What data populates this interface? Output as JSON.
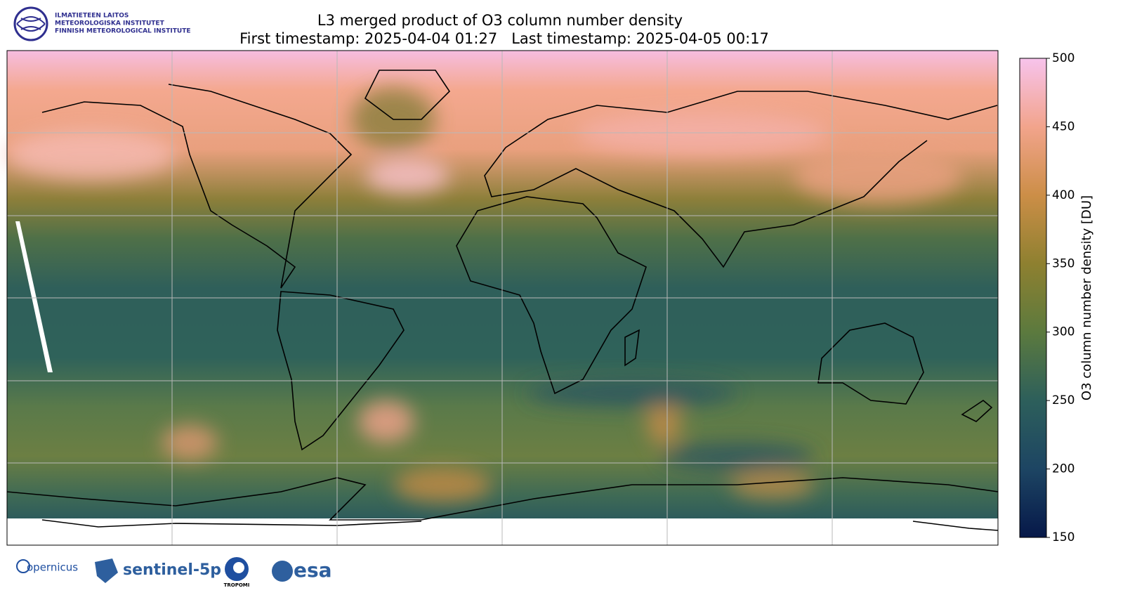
{
  "header": {
    "title": "L3 merged product of O3 column number density",
    "subtitle": "First timestamp: 2025-04-04 01:27   Last timestamp: 2025-04-05 00:17"
  },
  "institute": [
    "ILMATIETEEN LAITOS",
    "METEOROLOGISKA INSTITUTET",
    "FINNISH METEOROLOGICAL INSTITUTE"
  ],
  "colorbar": {
    "label": "O3 column number density [DU]",
    "lim": [
      150,
      500
    ],
    "ticks": [
      150,
      200,
      250,
      300,
      350,
      400,
      450,
      500
    ]
  },
  "logos": {
    "copernicus": "opernicus",
    "sentinel": "sentinel-5p",
    "tropomi": "TROPOMI",
    "esa": "esa"
  }
}
